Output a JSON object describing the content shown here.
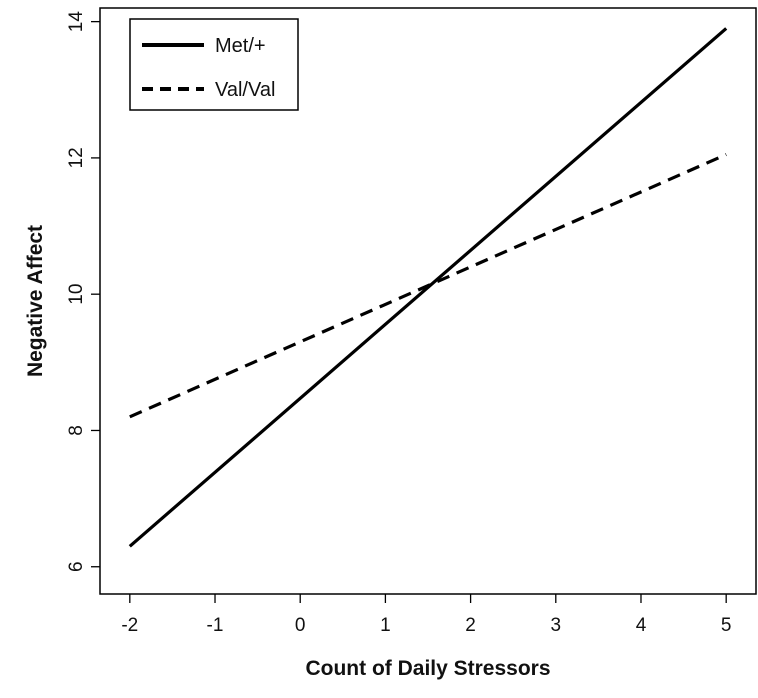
{
  "chart_data": {
    "type": "line",
    "title": "",
    "xlabel": "Count of Daily Stressors",
    "ylabel": "Negative Affect",
    "xlim": [
      -2.35,
      5.35
    ],
    "ylim": [
      5.6,
      14.2
    ],
    "x_ticks": [
      -2,
      -1,
      0,
      1,
      2,
      3,
      4,
      5
    ],
    "y_ticks": [
      6,
      8,
      10,
      12,
      14
    ],
    "grid": false,
    "legend_position": "top-left",
    "series": [
      {
        "name": "Met/+",
        "style": "solid",
        "color": "#000000",
        "x": [
          -2,
          5
        ],
        "y": [
          6.3,
          13.9
        ]
      },
      {
        "name": "Val/Val",
        "style": "dashed",
        "color": "#000000",
        "x": [
          -2,
          5
        ],
        "y": [
          8.2,
          12.05
        ]
      }
    ]
  }
}
